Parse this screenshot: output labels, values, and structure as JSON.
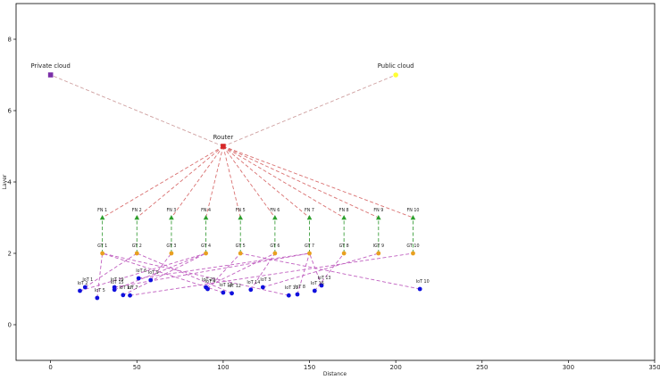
{
  "chart_data": {
    "type": "scatter",
    "title": "",
    "xlabel": "Distance",
    "ylabel": "Layer",
    "xlim": [
      -20,
      350
    ],
    "ylim": [
      -1,
      9
    ],
    "xticks": [
      0,
      50,
      100,
      150,
      200,
      250,
      300,
      350
    ],
    "yticks": [
      0,
      2,
      4,
      6,
      8
    ],
    "grid": false,
    "nodes": [
      {
        "id": "private",
        "label": "Private cloud",
        "x": 0,
        "y": 7.0,
        "color": "#7b2fa8",
        "shape": "square",
        "size": "big"
      },
      {
        "id": "public",
        "label": "Public cloud",
        "x": 200,
        "y": 7.0,
        "color": "#ffff33",
        "shape": "circle",
        "size": "big"
      },
      {
        "id": "router",
        "label": "Router",
        "x": 100,
        "y": 5.0,
        "color": "#d62728",
        "shape": "square",
        "size": "big"
      },
      {
        "id": "fn1",
        "label": "FN 1",
        "x": 30,
        "y": 3.0,
        "color": "#2ca02c",
        "shape": "triangle",
        "size": "small"
      },
      {
        "id": "fn2",
        "label": "FN 2",
        "x": 50,
        "y": 3.0,
        "color": "#2ca02c",
        "shape": "triangle",
        "size": "small"
      },
      {
        "id": "fn3",
        "label": "FN 3",
        "x": 70,
        "y": 3.0,
        "color": "#2ca02c",
        "shape": "triangle",
        "size": "small"
      },
      {
        "id": "fn4",
        "label": "FN 4",
        "x": 90,
        "y": 3.0,
        "color": "#2ca02c",
        "shape": "triangle",
        "size": "small"
      },
      {
        "id": "fn5",
        "label": "FN 5",
        "x": 110,
        "y": 3.0,
        "color": "#2ca02c",
        "shape": "triangle",
        "size": "small"
      },
      {
        "id": "fn6",
        "label": "FN 6",
        "x": 130,
        "y": 3.0,
        "color": "#2ca02c",
        "shape": "triangle",
        "size": "small"
      },
      {
        "id": "fn7",
        "label": "FN 7",
        "x": 150,
        "y": 3.0,
        "color": "#2ca02c",
        "shape": "triangle",
        "size": "small"
      },
      {
        "id": "fn8",
        "label": "FN 8",
        "x": 170,
        "y": 3.0,
        "color": "#2ca02c",
        "shape": "triangle",
        "size": "small"
      },
      {
        "id": "fn9",
        "label": "FN 9",
        "x": 190,
        "y": 3.0,
        "color": "#2ca02c",
        "shape": "triangle",
        "size": "small"
      },
      {
        "id": "fn10",
        "label": "FN 10",
        "x": 210,
        "y": 3.0,
        "color": "#2ca02c",
        "shape": "triangle",
        "size": "small"
      },
      {
        "id": "gt1",
        "label": "GT 1",
        "x": 30,
        "y": 2.0,
        "color": "#e8a020",
        "shape": "circle",
        "size": "small"
      },
      {
        "id": "gt2",
        "label": "GT 2",
        "x": 50,
        "y": 2.0,
        "color": "#e8a020",
        "shape": "circle",
        "size": "small"
      },
      {
        "id": "gt3",
        "label": "GT 3",
        "x": 70,
        "y": 2.0,
        "color": "#e8a020",
        "shape": "circle",
        "size": "small"
      },
      {
        "id": "gt4",
        "label": "GT 4",
        "x": 90,
        "y": 2.0,
        "color": "#e8a020",
        "shape": "circle",
        "size": "small"
      },
      {
        "id": "gt5",
        "label": "GT 5",
        "x": 110,
        "y": 2.0,
        "color": "#e8a020",
        "shape": "circle",
        "size": "small"
      },
      {
        "id": "gt6",
        "label": "GT 6",
        "x": 130,
        "y": 2.0,
        "color": "#e8a020",
        "shape": "circle",
        "size": "small"
      },
      {
        "id": "gt7",
        "label": "GT 7",
        "x": 150,
        "y": 2.0,
        "color": "#e8a020",
        "shape": "circle",
        "size": "small"
      },
      {
        "id": "gt8",
        "label": "GT 8",
        "x": 170,
        "y": 2.0,
        "color": "#e8a020",
        "shape": "circle",
        "size": "small"
      },
      {
        "id": "gt9",
        "label": "IGT 9",
        "x": 190,
        "y": 2.0,
        "color": "#e8a020",
        "shape": "circle",
        "size": "small"
      },
      {
        "id": "gt10",
        "label": "GT 10",
        "x": 210,
        "y": 2.0,
        "color": "#e8a020",
        "shape": "circle",
        "size": "small"
      },
      {
        "id": "iot1",
        "label": "IoT 1",
        "x": 20,
        "y": 1.05,
        "color": "#1010dd",
        "shape": "circle",
        "size": "small"
      },
      {
        "id": "iot2",
        "label": "IoT 2",
        "x": 17,
        "y": 0.95,
        "color": "#1010dd",
        "shape": "circle",
        "size": "small"
      },
      {
        "id": "iot3",
        "label": "IoT 3",
        "x": 123,
        "y": 1.05,
        "color": "#1010dd",
        "shape": "circle",
        "size": "small"
      },
      {
        "id": "iot4",
        "label": "IoT 4",
        "x": 91,
        "y": 1.0,
        "color": "#1010dd",
        "shape": "circle",
        "size": "small"
      },
      {
        "id": "iot5",
        "label": "IoT 5",
        "x": 27,
        "y": 0.75,
        "color": "#1010dd",
        "shape": "circle",
        "size": "small"
      },
      {
        "id": "iot6",
        "label": "IoT 6",
        "x": 51,
        "y": 1.3,
        "color": "#1010dd",
        "shape": "circle",
        "size": "small"
      },
      {
        "id": "iot7",
        "label": "IoT 7",
        "x": 46,
        "y": 0.82,
        "color": "#1010dd",
        "shape": "circle",
        "size": "small"
      },
      {
        "id": "iot8",
        "label": "IoT 8",
        "x": 143,
        "y": 0.85,
        "color": "#1010dd",
        "shape": "circle",
        "size": "small"
      },
      {
        "id": "iot9",
        "label": "IoT 9",
        "x": 58,
        "y": 1.25,
        "color": "#1010dd",
        "shape": "circle",
        "size": "small"
      },
      {
        "id": "iot10",
        "label": "IoT 10",
        "x": 214,
        "y": 1.0,
        "color": "#1010dd",
        "shape": "circle",
        "size": "small"
      },
      {
        "id": "iot11",
        "label": "IoT 11",
        "x": 138,
        "y": 0.82,
        "color": "#1010dd",
        "shape": "circle",
        "size": "small"
      },
      {
        "id": "iot12",
        "label": "IoT 12",
        "x": 105,
        "y": 0.88,
        "color": "#1010dd",
        "shape": "circle",
        "size": "small"
      },
      {
        "id": "iot13",
        "label": "IoT 13",
        "x": 157,
        "y": 1.1,
        "color": "#1010dd",
        "shape": "circle",
        "size": "small"
      },
      {
        "id": "iot14",
        "label": "IoT 14",
        "x": 116,
        "y": 0.98,
        "color": "#1010dd",
        "shape": "circle",
        "size": "small"
      },
      {
        "id": "iot15",
        "label": "IoT 15",
        "x": 37,
        "y": 0.98,
        "color": "#1010dd",
        "shape": "circle",
        "size": "small"
      },
      {
        "id": "iot16",
        "label": "IoT 16",
        "x": 153,
        "y": 0.95,
        "color": "#1010dd",
        "shape": "circle",
        "size": "small"
      },
      {
        "id": "iot17",
        "label": "IoT 17",
        "x": 42,
        "y": 0.83,
        "color": "#1010dd",
        "shape": "circle",
        "size": "small"
      },
      {
        "id": "iot18",
        "label": "IoT 18",
        "x": 100,
        "y": 0.9,
        "color": "#1010dd",
        "shape": "circle",
        "size": "small"
      },
      {
        "id": "iot19",
        "label": "IoT 19",
        "x": 37,
        "y": 1.05,
        "color": "#1010dd",
        "shape": "circle",
        "size": "small"
      },
      {
        "id": "iot20",
        "label": "IoT 20",
        "x": 90,
        "y": 1.05,
        "color": "#1010dd",
        "shape": "circle",
        "size": "small"
      }
    ],
    "edges": [
      {
        "from": "router",
        "to": "private",
        "color": "#cfa0a0"
      },
      {
        "from": "router",
        "to": "public",
        "color": "#cfa0a0"
      },
      {
        "from": "router",
        "to": "fn1",
        "color": "#d97070"
      },
      {
        "from": "router",
        "to": "fn2",
        "color": "#d97070"
      },
      {
        "from": "router",
        "to": "fn3",
        "color": "#d97070"
      },
      {
        "from": "router",
        "to": "fn4",
        "color": "#d97070"
      },
      {
        "from": "router",
        "to": "fn5",
        "color": "#d97070"
      },
      {
        "from": "router",
        "to": "fn6",
        "color": "#d97070"
      },
      {
        "from": "router",
        "to": "fn7",
        "color": "#d97070"
      },
      {
        "from": "router",
        "to": "fn8",
        "color": "#d97070"
      },
      {
        "from": "router",
        "to": "fn9",
        "color": "#d97070"
      },
      {
        "from": "router",
        "to": "fn10",
        "color": "#d97070"
      },
      {
        "from": "gt1",
        "to": "fn1",
        "color": "#3fa03f"
      },
      {
        "from": "gt2",
        "to": "fn2",
        "color": "#3fa03f"
      },
      {
        "from": "gt3",
        "to": "fn3",
        "color": "#3fa03f"
      },
      {
        "from": "gt4",
        "to": "fn4",
        "color": "#3fa03f"
      },
      {
        "from": "gt5",
        "to": "fn5",
        "color": "#3fa03f"
      },
      {
        "from": "gt6",
        "to": "fn6",
        "color": "#3fa03f"
      },
      {
        "from": "gt7",
        "to": "fn7",
        "color": "#3fa03f"
      },
      {
        "from": "gt8",
        "to": "fn8",
        "color": "#3fa03f"
      },
      {
        "from": "gt9",
        "to": "fn9",
        "color": "#3fa03f"
      },
      {
        "from": "gt10",
        "to": "fn10",
        "color": "#3fa03f"
      },
      {
        "from": "iot1",
        "to": "gt2",
        "color": "#c060c0"
      },
      {
        "from": "iot2",
        "to": "gt4",
        "color": "#c060c0"
      },
      {
        "from": "iot3",
        "to": "gt9",
        "color": "#c060c0"
      },
      {
        "from": "iot4",
        "to": "gt5",
        "color": "#c060c0"
      },
      {
        "from": "iot5",
        "to": "gt1",
        "color": "#c060c0"
      },
      {
        "from": "iot6",
        "to": "gt7",
        "color": "#c060c0"
      },
      {
        "from": "iot7",
        "to": "gt10",
        "color": "#c060c0"
      },
      {
        "from": "iot8",
        "to": "gt7",
        "color": "#c060c0"
      },
      {
        "from": "iot9",
        "to": "gt3",
        "color": "#c060c0"
      },
      {
        "from": "iot10",
        "to": "gt5",
        "color": "#c060c0"
      },
      {
        "from": "iot11",
        "to": "gt1",
        "color": "#c060c0"
      },
      {
        "from": "iot12",
        "to": "gt2",
        "color": "#c060c0"
      },
      {
        "from": "iot13",
        "to": "gt7",
        "color": "#c060c0"
      },
      {
        "from": "iot14",
        "to": "gt6",
        "color": "#c060c0"
      },
      {
        "from": "iot15",
        "to": "gt4",
        "color": "#c060c0"
      },
      {
        "from": "iot16",
        "to": "gt8",
        "color": "#c060c0"
      },
      {
        "from": "iot17",
        "to": "gt4",
        "color": "#c060c0"
      },
      {
        "from": "iot18",
        "to": "gt1",
        "color": "#c060c0"
      },
      {
        "from": "iot19",
        "to": "gt7",
        "color": "#c060c0"
      },
      {
        "from": "iot20",
        "to": "gt6",
        "color": "#c060c0"
      }
    ]
  }
}
